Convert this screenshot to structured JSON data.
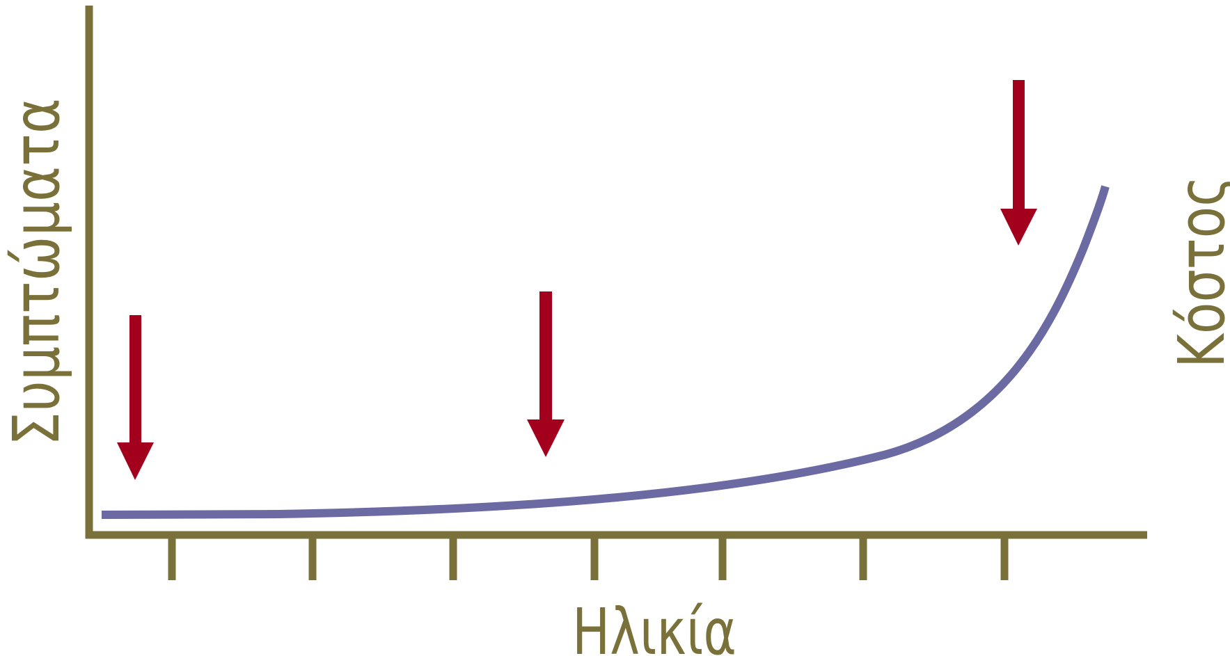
{
  "colors": {
    "axis": "#7a713a",
    "curve": "#6b6aa3",
    "arrow": "#a3001e",
    "background": "#ffffff"
  },
  "labels": {
    "x_axis": "Ηλικία",
    "y_axis_left": "Συμπτώματα",
    "y_axis_right": "Κόστος"
  },
  "x_axis": {
    "tick_count": 7
  },
  "arrows": {
    "count": 3,
    "direction": "down"
  }
}
